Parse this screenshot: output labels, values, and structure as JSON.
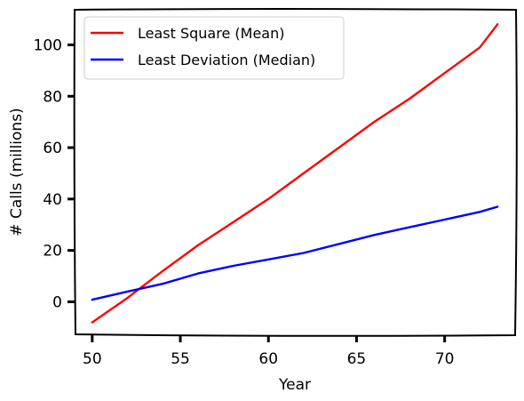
{
  "chart_data": {
    "type": "line",
    "xlabel": "Year",
    "ylabel": "# Calls (millions)",
    "xlim": [
      49,
      74
    ],
    "ylim": [
      -13,
      114
    ],
    "xticks": [
      50,
      55,
      60,
      65,
      70
    ],
    "yticks": [
      0,
      20,
      40,
      60,
      80,
      100
    ],
    "grid": false,
    "legend_position": "top-left",
    "x": [
      50,
      52,
      54,
      56,
      58,
      60,
      62,
      64,
      66,
      68,
      70,
      72,
      73
    ],
    "series": [
      {
        "name": "Least Square (Mean)",
        "color": "#ff0000",
        "values": [
          -8,
          1.5,
          12,
          22,
          31,
          40,
          50,
          60,
          70,
          79,
          89,
          99,
          108
        ]
      },
      {
        "name": "Least Deviation (Median)",
        "color": "#0000ff",
        "values": [
          0.8,
          4,
          7,
          11,
          14,
          16.5,
          19,
          22.5,
          26,
          29,
          32,
          35,
          37
        ]
      }
    ]
  }
}
